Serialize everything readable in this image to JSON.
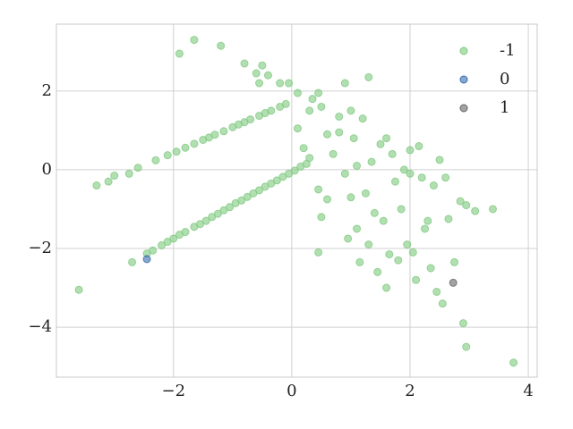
{
  "chart_data": {
    "type": "scatter",
    "xlim": [
      -3.98,
      4.15
    ],
    "ylim": [
      -5.27,
      3.7
    ],
    "xticks": [
      {
        "value": -2,
        "label": "−2"
      },
      0,
      2,
      4
    ],
    "yticks": [
      {
        "value": -4,
        "label": "−4"
      },
      {
        "value": -2,
        "label": "−2"
      },
      0,
      2
    ],
    "grid": true,
    "legend": "upper right",
    "series": [
      {
        "name": "-1",
        "color": "#7fc97f",
        "x": [
          -2.45,
          -2.35,
          -2.2,
          -2.1,
          -2.0,
          -1.9,
          -1.8,
          -1.65,
          -1.55,
          -1.45,
          -1.35,
          -1.25,
          -1.15,
          -1.05,
          -0.95,
          -0.85,
          -0.75,
          -0.65,
          -0.55,
          -0.45,
          -0.35,
          -0.25,
          -0.15,
          -0.05,
          0.05,
          0.15,
          0.25,
          -2.3,
          -2.1,
          -1.95,
          -1.8,
          -1.65,
          -1.5,
          -1.4,
          -1.3,
          -1.15,
          -1.0,
          -0.9,
          -0.8,
          -0.7,
          -0.55,
          -0.45,
          -0.35,
          -0.2,
          -0.1,
          -2.6,
          -2.75,
          -3.3,
          -3.1,
          -3.0,
          -2.7,
          -3.6,
          -1.9,
          -1.65,
          -1.2,
          -0.8,
          -0.6,
          -0.5,
          -0.55,
          -0.4,
          -0.2,
          -0.05,
          0.1,
          0.35,
          0.45,
          0.8,
          0.1,
          0.2,
          0.3,
          0.45,
          0.5,
          0.45,
          0.6,
          0.7,
          0.8,
          0.9,
          0.95,
          1.0,
          1.05,
          1.1,
          1.15,
          1.2,
          1.25,
          1.3,
          1.35,
          1.4,
          1.45,
          1.5,
          1.55,
          1.6,
          1.65,
          1.7,
          1.75,
          1.8,
          1.85,
          1.9,
          1.95,
          2.0,
          2.05,
          2.1,
          2.15,
          2.2,
          2.25,
          2.35,
          2.4,
          2.45,
          2.5,
          2.55,
          2.6,
          2.65,
          2.75,
          2.85,
          2.95,
          2.9,
          2.95,
          3.1,
          3.4,
          3.75,
          0.9,
          1.1,
          0.6,
          1.0,
          1.6,
          0.3,
          0.5,
          2.3,
          2.0,
          1.3
        ],
        "values": [
          -2.13,
          -2.05,
          -1.92,
          -1.83,
          -1.75,
          -1.65,
          -1.58,
          -1.45,
          -1.38,
          -1.3,
          -1.2,
          -1.12,
          -1.03,
          -0.95,
          -0.85,
          -0.78,
          -0.69,
          -0.6,
          -0.52,
          -0.43,
          -0.35,
          -0.27,
          -0.18,
          -0.1,
          -0.02,
          0.08,
          0.15,
          0.24,
          0.37,
          0.46,
          0.56,
          0.66,
          0.76,
          0.82,
          0.89,
          0.98,
          1.08,
          1.15,
          1.21,
          1.28,
          1.37,
          1.44,
          1.5,
          1.6,
          1.67,
          0.05,
          -0.1,
          -0.4,
          -0.3,
          -0.15,
          -2.35,
          -3.05,
          2.95,
          3.3,
          3.15,
          2.7,
          2.45,
          2.65,
          2.2,
          2.4,
          2.2,
          2.2,
          1.95,
          1.8,
          1.95,
          1.35,
          1.05,
          0.55,
          0.3,
          -0.5,
          -1.2,
          -2.1,
          -0.75,
          0.4,
          0.95,
          2.2,
          -1.75,
          -0.7,
          0.8,
          -1.5,
          -2.35,
          1.3,
          -0.6,
          2.35,
          0.2,
          -1.1,
          -2.6,
          0.65,
          -1.3,
          -3.0,
          -2.15,
          0.4,
          -0.3,
          -2.3,
          -1.0,
          0.0,
          -1.9,
          0.5,
          -2.1,
          -2.8,
          0.6,
          -0.2,
          -1.5,
          -2.5,
          -0.4,
          -3.1,
          0.25,
          -3.4,
          -0.2,
          -1.25,
          -2.35,
          -0.8,
          -0.9,
          -3.9,
          -4.5,
          -1.05,
          -1.0,
          -4.9,
          -0.1,
          0.1,
          0.9,
          1.5,
          0.8,
          1.5,
          1.6,
          -1.3,
          -0.1,
          -1.9
        ]
      },
      {
        "name": "0",
        "color": "#386cb0",
        "x": [
          -2.45
        ],
        "values": [
          -2.27
        ]
      },
      {
        "name": "1",
        "color": "#666666",
        "x": [
          2.73
        ],
        "values": [
          -2.87
        ]
      }
    ]
  }
}
